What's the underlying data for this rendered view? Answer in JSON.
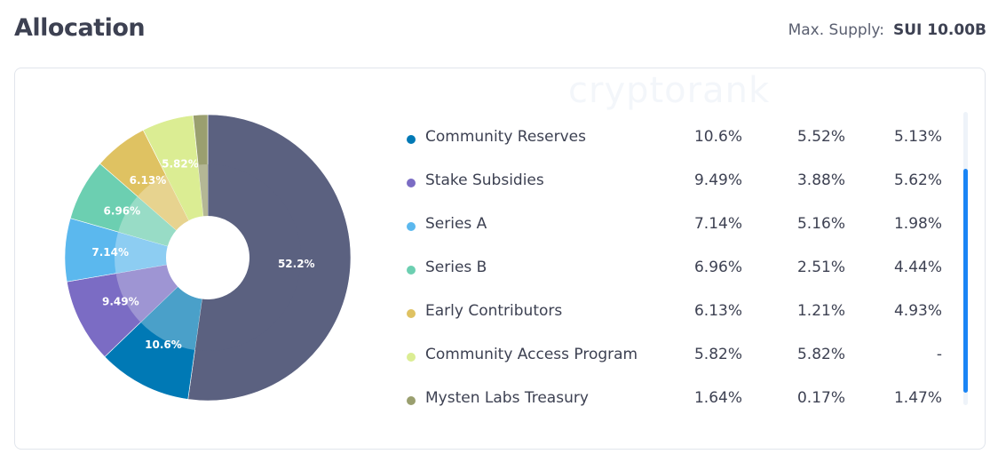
{
  "header": {
    "title": "Allocation",
    "max_supply_label": "Max. Supply:",
    "max_supply_value": "SUI 10.00B"
  },
  "watermark": "cryptorank",
  "chart_data": {
    "type": "pie",
    "style": "donut",
    "slices": [
      {
        "value": 52.2,
        "label": "52.2%",
        "color": "#5b6180",
        "inner_color": "#5b6180"
      },
      {
        "value": 10.6,
        "label": "10.6%",
        "color": "#0079b5",
        "inner_color": "#4aa0c9"
      },
      {
        "value": 9.49,
        "label": "9.49%",
        "color": "#7b6cc4",
        "inner_color": "#9e95d3"
      },
      {
        "value": 7.14,
        "label": "7.14%",
        "color": "#5bb8ee",
        "inner_color": "#8dcdf2"
      },
      {
        "value": 6.96,
        "label": "6.96%",
        "color": "#6ccfb1",
        "inner_color": "#98dcc6"
      },
      {
        "value": 6.13,
        "label": "6.13%",
        "color": "#dfc262",
        "inner_color": "#e7d38f"
      },
      {
        "value": 5.82,
        "label": "5.82%",
        "color": "#dbed93",
        "inner_color": "#dbed93"
      },
      {
        "value": 1.64,
        "label": "",
        "color": "#9a9f6f",
        "inner_color": "#b4b795"
      }
    ]
  },
  "legend": [
    {
      "name": "Community Reserves",
      "color": "#0079b5",
      "total": "10.6%",
      "col2": "5.52%",
      "col3": "5.13%"
    },
    {
      "name": "Stake Subsidies",
      "color": "#7b6cc4",
      "total": "9.49%",
      "col2": "3.88%",
      "col3": "5.62%"
    },
    {
      "name": "Series A",
      "color": "#5bb8ee",
      "total": "7.14%",
      "col2": "5.16%",
      "col3": "1.98%"
    },
    {
      "name": "Series B",
      "color": "#6ccfb1",
      "total": "6.96%",
      "col2": "2.51%",
      "col3": "4.44%"
    },
    {
      "name": "Early Contributors",
      "color": "#dfc262",
      "total": "6.13%",
      "col2": "1.21%",
      "col3": "4.93%"
    },
    {
      "name": "Community Access Program",
      "color": "#dbed93",
      "total": "5.82%",
      "col2": "5.82%",
      "col3": "-"
    },
    {
      "name": "Mysten Labs Treasury",
      "color": "#9a9f6f",
      "total": "1.64%",
      "col2": "0.17%",
      "col3": "1.47%"
    }
  ],
  "scrollbar_color": "#1a85f5"
}
